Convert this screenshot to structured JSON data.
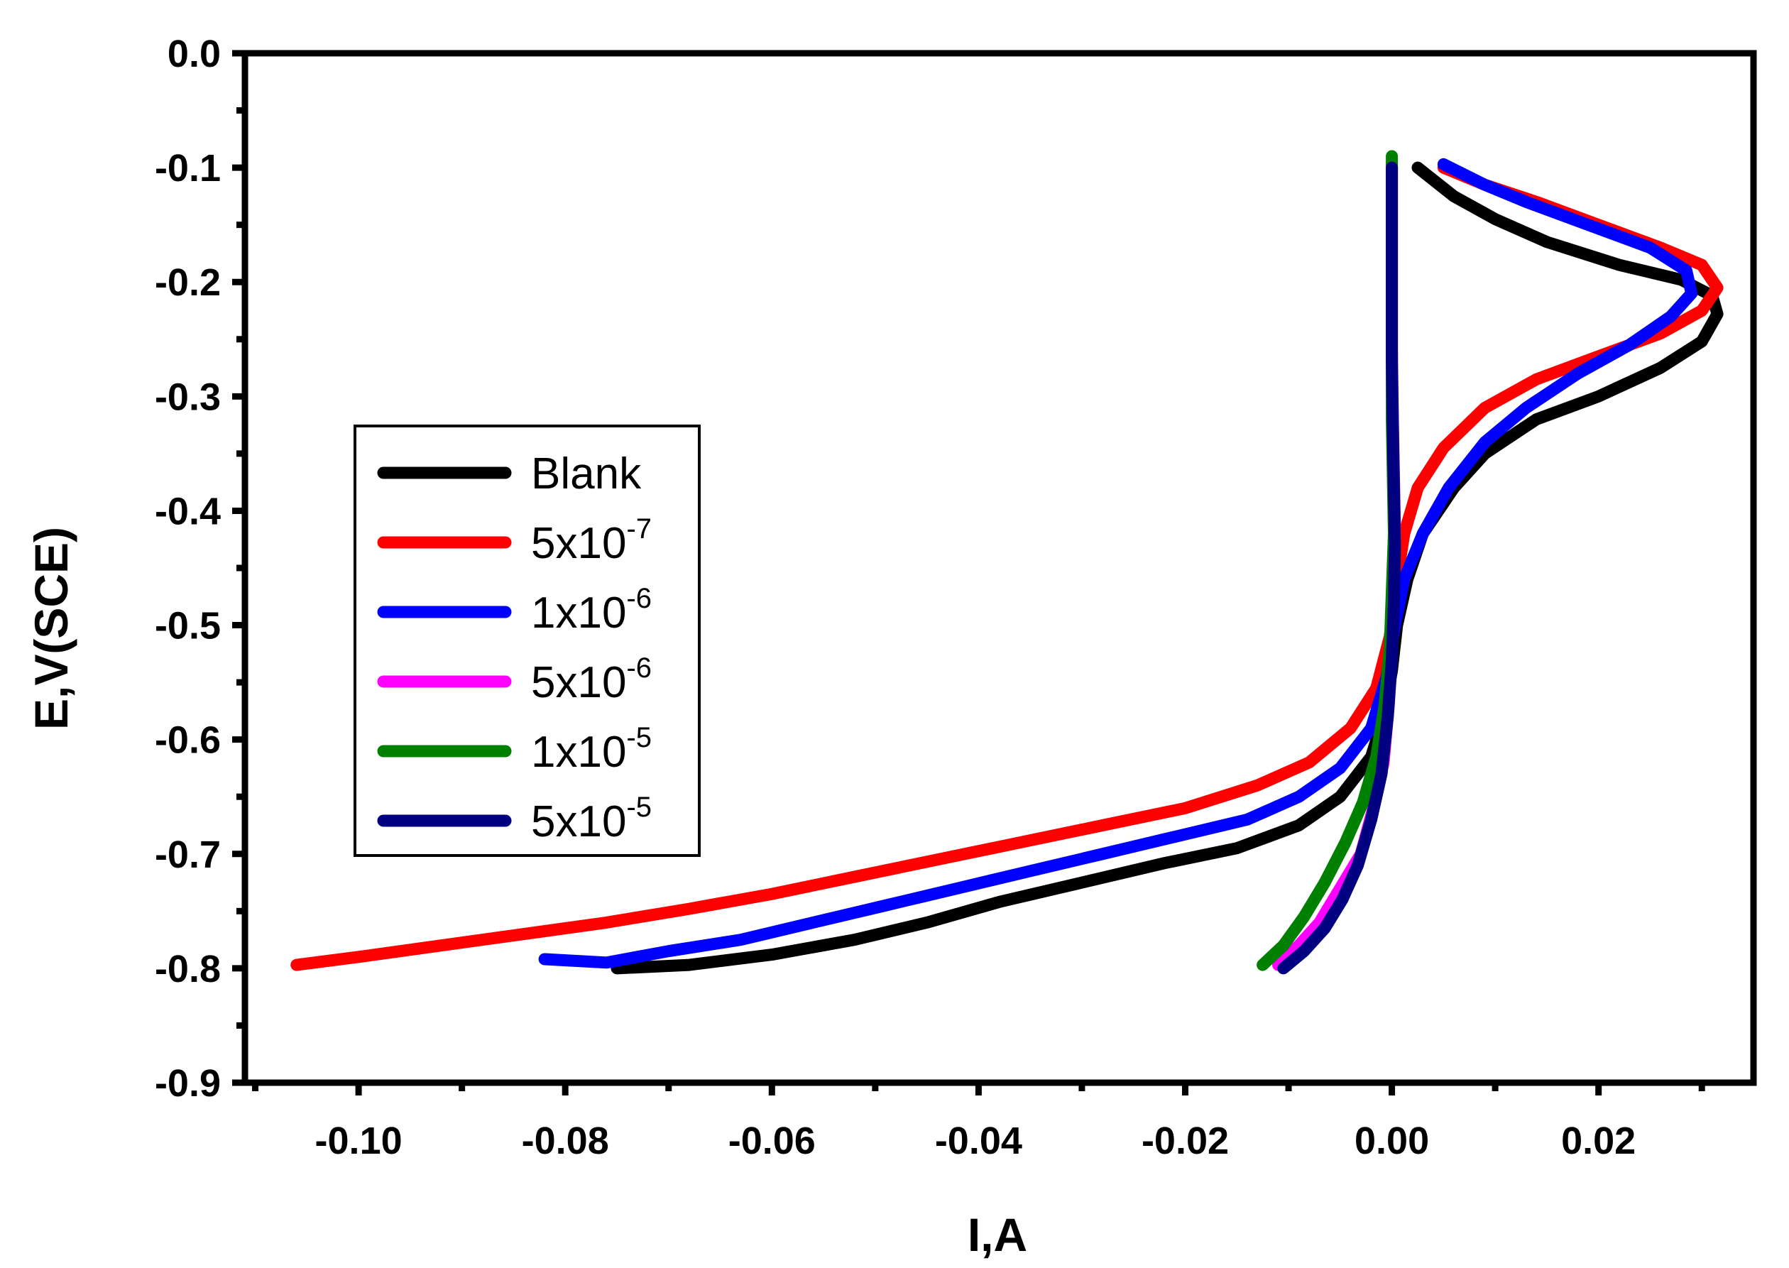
{
  "chart_data": {
    "type": "line",
    "title": "",
    "xlabel": "I,A",
    "ylabel": "E,V(SCE)",
    "xlim": [
      -0.111,
      0.035
    ],
    "ylim": [
      -0.9,
      0.0
    ],
    "xticks": [
      -0.1,
      -0.08,
      -0.06,
      -0.04,
      -0.02,
      0.0,
      0.02
    ],
    "xtick_labels": [
      "-0.10",
      "-0.08",
      "-0.06",
      "-0.04",
      "-0.02",
      "0.00",
      "0.02"
    ],
    "yticks": [
      0.0,
      -0.1,
      -0.2,
      -0.3,
      -0.4,
      -0.5,
      -0.6,
      -0.7,
      -0.8,
      -0.9
    ],
    "ytick_labels": [
      "0.0",
      "-0.1",
      "-0.2",
      "-0.3",
      "-0.4",
      "-0.5",
      "-0.6",
      "-0.7",
      "-0.8",
      "-0.9"
    ],
    "grid": false,
    "legend_position": "center-left",
    "series": [
      {
        "name": "Blank",
        "label_base": "Blank",
        "label_sup": "",
        "color": "#000000",
        "points": [
          [
            -0.075,
            -0.8
          ],
          [
            -0.068,
            -0.797
          ],
          [
            -0.06,
            -0.788
          ],
          [
            -0.052,
            -0.775
          ],
          [
            -0.045,
            -0.76
          ],
          [
            -0.038,
            -0.742
          ],
          [
            -0.03,
            -0.725
          ],
          [
            -0.022,
            -0.708
          ],
          [
            -0.015,
            -0.695
          ],
          [
            -0.009,
            -0.675
          ],
          [
            -0.005,
            -0.65
          ],
          [
            -0.002,
            -0.615
          ],
          [
            -0.0008,
            -0.58
          ],
          [
            0.0,
            -0.54
          ],
          [
            0.0005,
            -0.5
          ],
          [
            0.0015,
            -0.46
          ],
          [
            0.003,
            -0.42
          ],
          [
            0.006,
            -0.38
          ],
          [
            0.009,
            -0.35
          ],
          [
            0.014,
            -0.32
          ],
          [
            0.02,
            -0.3
          ],
          [
            0.026,
            -0.275
          ],
          [
            0.03,
            -0.252
          ],
          [
            0.0315,
            -0.228
          ],
          [
            0.031,
            -0.212
          ],
          [
            0.028,
            -0.198
          ],
          [
            0.022,
            -0.185
          ],
          [
            0.015,
            -0.165
          ],
          [
            0.01,
            -0.145
          ],
          [
            0.006,
            -0.125
          ],
          [
            0.0025,
            -0.1
          ]
        ]
      },
      {
        "name": "5x10-7",
        "label_base": "5x10",
        "label_sup": "-7",
        "color": "#ff0000",
        "points": [
          [
            -0.106,
            -0.797
          ],
          [
            -0.1,
            -0.79
          ],
          [
            -0.092,
            -0.78
          ],
          [
            -0.084,
            -0.77
          ],
          [
            -0.076,
            -0.76
          ],
          [
            -0.068,
            -0.748
          ],
          [
            -0.06,
            -0.735
          ],
          [
            -0.052,
            -0.72
          ],
          [
            -0.044,
            -0.705
          ],
          [
            -0.036,
            -0.69
          ],
          [
            -0.028,
            -0.675
          ],
          [
            -0.02,
            -0.66
          ],
          [
            -0.013,
            -0.64
          ],
          [
            -0.008,
            -0.62
          ],
          [
            -0.004,
            -0.59
          ],
          [
            -0.0015,
            -0.555
          ],
          [
            -0.0002,
            -0.51
          ],
          [
            0.0005,
            -0.46
          ],
          [
            0.0012,
            -0.42
          ],
          [
            0.0025,
            -0.38
          ],
          [
            0.005,
            -0.345
          ],
          [
            0.009,
            -0.31
          ],
          [
            0.014,
            -0.285
          ],
          [
            0.02,
            -0.265
          ],
          [
            0.026,
            -0.245
          ],
          [
            0.03,
            -0.225
          ],
          [
            0.0315,
            -0.205
          ],
          [
            0.03,
            -0.185
          ],
          [
            0.026,
            -0.17
          ],
          [
            0.02,
            -0.15
          ],
          [
            0.014,
            -0.13
          ],
          [
            0.009,
            -0.115
          ],
          [
            0.005,
            -0.1
          ]
        ]
      },
      {
        "name": "1x10-6",
        "label_base": "1x10",
        "label_sup": "-6",
        "color": "#0000ff",
        "points": [
          [
            -0.082,
            -0.792
          ],
          [
            -0.076,
            -0.795
          ],
          [
            -0.07,
            -0.785
          ],
          [
            -0.063,
            -0.775
          ],
          [
            -0.056,
            -0.76
          ],
          [
            -0.049,
            -0.745
          ],
          [
            -0.042,
            -0.73
          ],
          [
            -0.035,
            -0.715
          ],
          [
            -0.028,
            -0.7
          ],
          [
            -0.021,
            -0.685
          ],
          [
            -0.014,
            -0.67
          ],
          [
            -0.009,
            -0.65
          ],
          [
            -0.005,
            -0.625
          ],
          [
            -0.002,
            -0.59
          ],
          [
            -0.0005,
            -0.545
          ],
          [
            0.0003,
            -0.5
          ],
          [
            0.0012,
            -0.46
          ],
          [
            0.003,
            -0.42
          ],
          [
            0.0055,
            -0.38
          ],
          [
            0.009,
            -0.34
          ],
          [
            0.013,
            -0.31
          ],
          [
            0.018,
            -0.28
          ],
          [
            0.023,
            -0.255
          ],
          [
            0.027,
            -0.23
          ],
          [
            0.029,
            -0.21
          ],
          [
            0.0285,
            -0.19
          ],
          [
            0.025,
            -0.17
          ],
          [
            0.019,
            -0.15
          ],
          [
            0.013,
            -0.13
          ],
          [
            0.009,
            -0.115
          ],
          [
            0.005,
            -0.097
          ]
        ]
      },
      {
        "name": "5x10-6",
        "label_base": "5x10",
        "label_sup": "-6",
        "color": "#ff00ff",
        "points": [
          [
            -0.011,
            -0.797
          ],
          [
            -0.009,
            -0.78
          ],
          [
            -0.007,
            -0.76
          ],
          [
            -0.005,
            -0.73
          ],
          [
            -0.003,
            -0.7
          ],
          [
            -0.0018,
            -0.66
          ],
          [
            -0.0008,
            -0.62
          ],
          [
            -0.0003,
            -0.57
          ],
          [
            0.0,
            -0.52
          ],
          [
            0.0002,
            -0.47
          ],
          [
            0.0003,
            -0.42
          ],
          [
            0.0002,
            -0.37
          ],
          [
            0.0001,
            -0.32
          ],
          [
            0.0,
            -0.26
          ],
          [
            0.0,
            -0.2
          ],
          [
            0.0,
            -0.14
          ],
          [
            0.0,
            -0.095
          ]
        ]
      },
      {
        "name": "1x10-5",
        "label_base": "1x10",
        "label_sup": "-5",
        "color": "#008000",
        "points": [
          [
            -0.0125,
            -0.797
          ],
          [
            -0.0105,
            -0.78
          ],
          [
            -0.0085,
            -0.755
          ],
          [
            -0.0065,
            -0.725
          ],
          [
            -0.0045,
            -0.69
          ],
          [
            -0.0028,
            -0.655
          ],
          [
            -0.0015,
            -0.615
          ],
          [
            -0.0007,
            -0.57
          ],
          [
            -0.0002,
            -0.52
          ],
          [
            0.0,
            -0.47
          ],
          [
            0.0002,
            -0.42
          ],
          [
            0.0001,
            -0.37
          ],
          [
            0.0,
            -0.32
          ],
          [
            0.0,
            -0.26
          ],
          [
            0.0,
            -0.2
          ],
          [
            0.0,
            -0.14
          ],
          [
            0.0,
            -0.09
          ]
        ]
      },
      {
        "name": "5x10-5",
        "label_base": "5x10",
        "label_sup": "-5",
        "color": "#000080",
        "points": [
          [
            -0.0105,
            -0.8
          ],
          [
            -0.0085,
            -0.785
          ],
          [
            -0.0065,
            -0.765
          ],
          [
            -0.0048,
            -0.74
          ],
          [
            -0.0033,
            -0.71
          ],
          [
            -0.002,
            -0.67
          ],
          [
            -0.001,
            -0.63
          ],
          [
            -0.0004,
            -0.58
          ],
          [
            0.0,
            -0.53
          ],
          [
            0.0002,
            -0.48
          ],
          [
            0.0003,
            -0.43
          ],
          [
            0.0002,
            -0.38
          ],
          [
            0.0001,
            -0.33
          ],
          [
            0.0,
            -0.27
          ],
          [
            0.0,
            -0.21
          ],
          [
            0.0,
            -0.15
          ],
          [
            0.0,
            -0.1
          ]
        ]
      }
    ]
  }
}
